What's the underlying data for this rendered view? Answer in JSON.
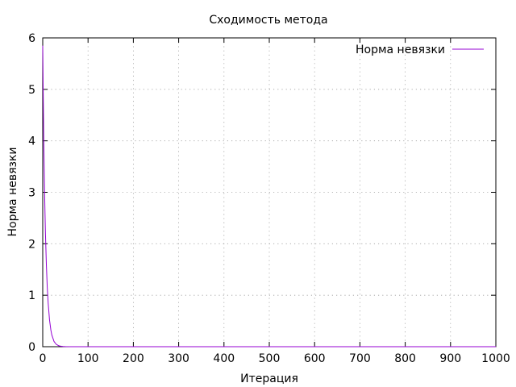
{
  "chart_data": {
    "type": "line",
    "title": "Сходимость метода",
    "xlabel": "Итерация",
    "ylabel": "Норма невязки",
    "xlim": [
      0,
      1000
    ],
    "ylim": [
      0,
      6
    ],
    "xticks": [
      0,
      100,
      200,
      300,
      400,
      500,
      600,
      700,
      800,
      900,
      1000
    ],
    "yticks": [
      0,
      1,
      2,
      3,
      4,
      5,
      6
    ],
    "grid": true,
    "legend_position": "top-right",
    "series": [
      {
        "name": "Норма невязки",
        "color": "#9400d3",
        "x": [
          0,
          1,
          2,
          3,
          4,
          5,
          6,
          8,
          10,
          12,
          15,
          18,
          20,
          25,
          30,
          35,
          40,
          45,
          50,
          60,
          70,
          80,
          100,
          150,
          200,
          300,
          400,
          500,
          600,
          700,
          800,
          900,
          1000
        ],
        "y": [
          5.85,
          5.0,
          4.2,
          3.6,
          3.05,
          2.6,
          2.2,
          1.6,
          1.15,
          0.85,
          0.52,
          0.32,
          0.23,
          0.1,
          0.045,
          0.02,
          0.009,
          0.004,
          0.002,
          0.0005,
          0.0001,
          0.0,
          0.0,
          0.0,
          0.0,
          0.0,
          0.0,
          0.0,
          0.0,
          0.0,
          0.0,
          0.0,
          0.0
        ]
      }
    ]
  }
}
